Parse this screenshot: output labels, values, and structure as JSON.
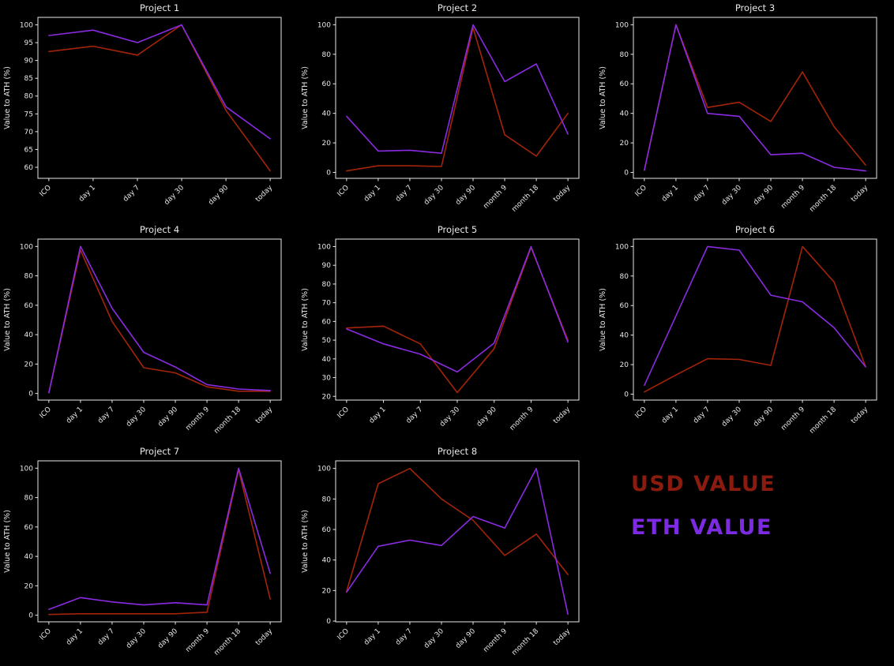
{
  "page": {
    "background": "#000000"
  },
  "legend": {
    "position": "figure-bottom-right",
    "usd_label": "USD VALUE",
    "eth_label": "ETH VALUE",
    "usd_color": "#8b1a0f",
    "eth_color": "#7c2be2"
  },
  "style": {
    "usd_line_color": "#a32408",
    "eth_line_color": "#8a2be2",
    "axis_color": "#e8e8e8",
    "text_color": "#e8e8e8",
    "title_color": "#e8e8e8"
  },
  "chart_data": [
    {
      "type": "line",
      "title": "Project 1",
      "xlabel": "",
      "ylabel": "Value to ATH (%)",
      "grid": false,
      "categories": [
        "ICO",
        "day 1",
        "day 7",
        "day 30",
        "day 90",
        "today"
      ],
      "yticks": [
        60,
        65,
        70,
        75,
        80,
        85,
        90,
        95,
        100
      ],
      "ylim": [
        56.9,
        102.1
      ],
      "series": [
        {
          "name": "USD VALUE",
          "key": "usd",
          "color": "#a32408",
          "values": [
            92.5,
            94,
            91.5,
            100,
            76,
            59
          ]
        },
        {
          "name": "ETH VALUE",
          "key": "eth",
          "color": "#8a2be2",
          "values": [
            97,
            98.5,
            95,
            100,
            77,
            68
          ]
        }
      ]
    },
    {
      "type": "line",
      "title": "Project 2",
      "xlabel": "",
      "ylabel": "Value to ATH (%)",
      "grid": false,
      "categories": [
        "ICO",
        "day 1",
        "day 7",
        "day 30",
        "day 90",
        "month 9",
        "month 18",
        "today"
      ],
      "yticks": [
        0,
        20,
        40,
        60,
        80,
        100
      ],
      "ylim": [
        -4,
        105
      ],
      "series": [
        {
          "name": "USD VALUE",
          "key": "usd",
          "color": "#a32408",
          "values": [
            1,
            4.5,
            4.5,
            4,
            98,
            25.5,
            11,
            40
          ]
        },
        {
          "name": "ETH VALUE",
          "key": "eth",
          "color": "#8a2be2",
          "values": [
            38,
            14.5,
            15,
            13,
            100,
            61.5,
            73.5,
            26
          ]
        }
      ]
    },
    {
      "type": "line",
      "title": "Project 3",
      "xlabel": "",
      "ylabel": "Value to ATH (%)",
      "grid": false,
      "categories": [
        "ICO",
        "day 1",
        "day 7",
        "day 30",
        "day 90",
        "month 9",
        "month 18",
        "today"
      ],
      "yticks": [
        0,
        20,
        40,
        60,
        80,
        100
      ],
      "ylim": [
        -4,
        105
      ],
      "series": [
        {
          "name": "USD VALUE",
          "key": "usd",
          "color": "#a32408",
          "values": [
            1.5,
            100,
            44,
            47.5,
            34.5,
            68,
            31,
            5
          ]
        },
        {
          "name": "ETH VALUE",
          "key": "eth",
          "color": "#8a2be2",
          "values": [
            1.5,
            100,
            40,
            38,
            12,
            13,
            3.5,
            1
          ]
        }
      ]
    },
    {
      "type": "line",
      "title": "Project 4",
      "xlabel": "",
      "ylabel": "Value to ATH (%)",
      "grid": false,
      "categories": [
        "ICO",
        "day 1",
        "day 7",
        "day 30",
        "day 90",
        "month 9",
        "month 18",
        "today"
      ],
      "yticks": [
        0,
        20,
        40,
        60,
        80,
        100
      ],
      "ylim": [
        -4.5,
        105
      ],
      "series": [
        {
          "name": "USD VALUE",
          "key": "usd",
          "color": "#a32408",
          "values": [
            0.5,
            97.5,
            49,
            17.5,
            14,
            4.5,
            1.5,
            1.5
          ]
        },
        {
          "name": "ETH VALUE",
          "key": "eth",
          "color": "#8a2be2",
          "values": [
            0.5,
            100,
            58,
            28,
            18,
            6,
            3,
            2
          ]
        }
      ]
    },
    {
      "type": "line",
      "title": "Project 5",
      "xlabel": "",
      "ylabel": "Value to ATH (%)",
      "grid": false,
      "categories": [
        "ICO",
        "day 1",
        "day 7",
        "day 30",
        "day 90",
        "month 9",
        "today"
      ],
      "yticks": [
        20,
        30,
        40,
        50,
        60,
        70,
        80,
        90,
        100
      ],
      "ylim": [
        18,
        104
      ],
      "series": [
        {
          "name": "USD VALUE",
          "key": "usd",
          "color": "#a32408",
          "values": [
            56.5,
            57.5,
            48,
            22,
            45.5,
            99.5,
            50
          ]
        },
        {
          "name": "ETH VALUE",
          "key": "eth",
          "color": "#8a2be2",
          "values": [
            56,
            48,
            42.5,
            33,
            48.5,
            100,
            49
          ]
        }
      ]
    },
    {
      "type": "line",
      "title": "Project 6",
      "xlabel": "",
      "ylabel": "Value to ATH (%)",
      "grid": false,
      "categories": [
        "ICO",
        "day 1",
        "day 7",
        "day 30",
        "day 90",
        "month 9",
        "month 18",
        "today"
      ],
      "yticks": [
        0,
        20,
        40,
        60,
        80,
        100
      ],
      "ylim": [
        -4,
        105
      ],
      "series": [
        {
          "name": "USD VALUE",
          "key": "usd",
          "color": "#a32408",
          "values": [
            1.5,
            13,
            24,
            23.5,
            19.5,
            100,
            76,
            18.5
          ]
        },
        {
          "name": "ETH VALUE",
          "key": "eth",
          "color": "#8a2be2",
          "values": [
            6,
            53,
            100,
            97.5,
            67,
            62.5,
            45,
            18.5
          ]
        }
      ]
    },
    {
      "type": "line",
      "title": "Project 7",
      "xlabel": "",
      "ylabel": "Value to ATH (%)",
      "grid": false,
      "categories": [
        "ICO",
        "day 1",
        "day 7",
        "day 30",
        "day 90",
        "month 9",
        "month 18",
        "today"
      ],
      "yticks": [
        0,
        20,
        40,
        60,
        80,
        100
      ],
      "ylim": [
        -4.5,
        105
      ],
      "series": [
        {
          "name": "USD VALUE",
          "key": "usd",
          "color": "#a32408",
          "values": [
            0.5,
            1,
            1,
            1,
            1,
            2,
            99,
            11
          ]
        },
        {
          "name": "ETH VALUE",
          "key": "eth",
          "color": "#8a2be2",
          "values": [
            4,
            12,
            9,
            7,
            8.5,
            7,
            100,
            28.5
          ]
        }
      ]
    },
    {
      "type": "line",
      "title": "Project 8",
      "xlabel": "",
      "ylabel": "Value to ATH (%)",
      "grid": false,
      "categories": [
        "ICO",
        "day 1",
        "day 7",
        "day 30",
        "day 90",
        "month 9",
        "month 18",
        "today"
      ],
      "yticks": [
        0,
        20,
        40,
        60,
        80,
        100
      ],
      "ylim": [
        -0.5,
        105
      ],
      "series": [
        {
          "name": "USD VALUE",
          "key": "usd",
          "color": "#a32408",
          "values": [
            19.5,
            90,
            100,
            80,
            66,
            43,
            57,
            30.5
          ]
        },
        {
          "name": "ETH VALUE",
          "key": "eth",
          "color": "#8a2be2",
          "values": [
            19,
            49,
            53,
            49.5,
            68.5,
            61,
            100,
            4.5
          ]
        }
      ]
    }
  ]
}
